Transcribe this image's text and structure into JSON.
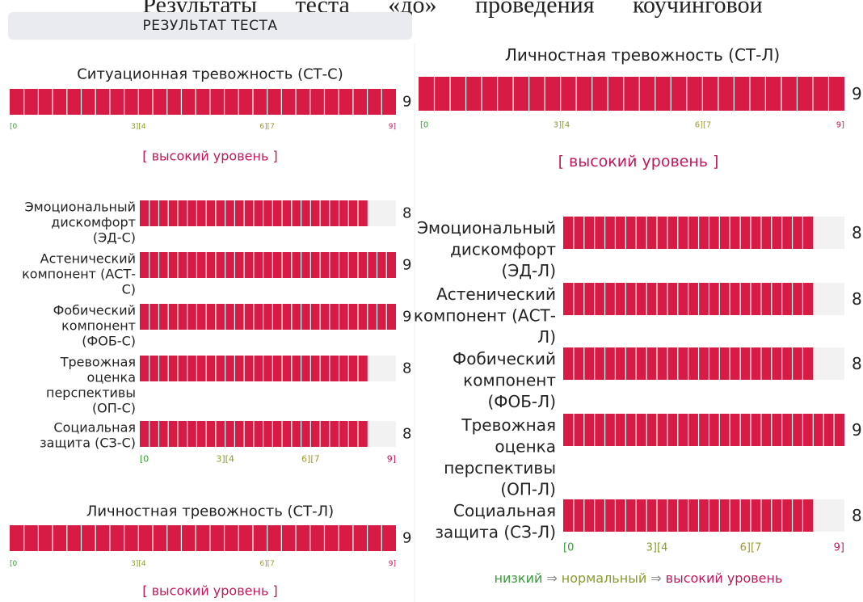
{
  "page_heading": "Результаты теста «до» проведения коучинговой",
  "left": {
    "header": "РЕЗУЛЬТАТ ТЕСТА",
    "xlim": [
      0,
      9
    ],
    "main": {
      "title": "Ситуационная тревожность (СТ-С)",
      "value": 9,
      "scale": [
        "[0",
        "3][4",
        "6][7",
        "9]"
      ],
      "level": "[ высокий уровень ]"
    },
    "subscales": {
      "items": [
        {
          "label_lines": [
            "Эмоциональный",
            "дискомфорт",
            "(ЭД-С)"
          ],
          "value": 8
        },
        {
          "label_lines": [
            "Астенический",
            "компонент (АСТ-",
            "С)"
          ],
          "value": 9
        },
        {
          "label_lines": [
            "Фобический",
            "компонент",
            "(ФОБ-С)"
          ],
          "value": 9
        },
        {
          "label_lines": [
            "Тревожная",
            "оценка",
            "перспективы",
            "(ОП-С)"
          ],
          "value": 8
        },
        {
          "label_lines": [
            "Социальная",
            "защита (СЗ-С)"
          ],
          "value": 8
        }
      ],
      "scale": [
        "[0",
        "3][4",
        "6][7",
        "9]"
      ]
    },
    "main2": {
      "title": "Личностная тревожность (СТ-Л)",
      "value": 9,
      "scale": [
        "[0",
        "3][4",
        "6][7",
        "9]"
      ],
      "level": "[ высокий уровень ]"
    }
  },
  "right": {
    "xlim": [
      0,
      9
    ],
    "main": {
      "title": "Личностная тревожность (СТ-Л)",
      "value": 9,
      "scale": [
        "[0",
        "3][4",
        "6][7",
        "9]"
      ],
      "level": "[ высокий уровень ]"
    },
    "subscales": {
      "items": [
        {
          "label_lines": [
            "Эмоциональный",
            "дискомфорт",
            "(ЭД-Л)"
          ],
          "value": 8
        },
        {
          "label_lines": [
            "Астенический",
            "компонент (АСТ-",
            "Л)"
          ],
          "value": 8
        },
        {
          "label_lines": [
            "Фобический",
            "компонент",
            "(ФОБ-Л)"
          ],
          "value": 8
        },
        {
          "label_lines": [
            "Тревожная",
            "оценка",
            "перспективы",
            "(ОП-Л)"
          ],
          "value": 9
        },
        {
          "label_lines": [
            "Социальная",
            "защита (СЗ-Л)"
          ],
          "value": 8
        }
      ],
      "scale": [
        "[0",
        "3][4",
        "6][7",
        "9]"
      ]
    },
    "legend": [
      "низкий",
      "⇒",
      "нормальный",
      "⇒",
      "высокий уровень"
    ]
  }
}
